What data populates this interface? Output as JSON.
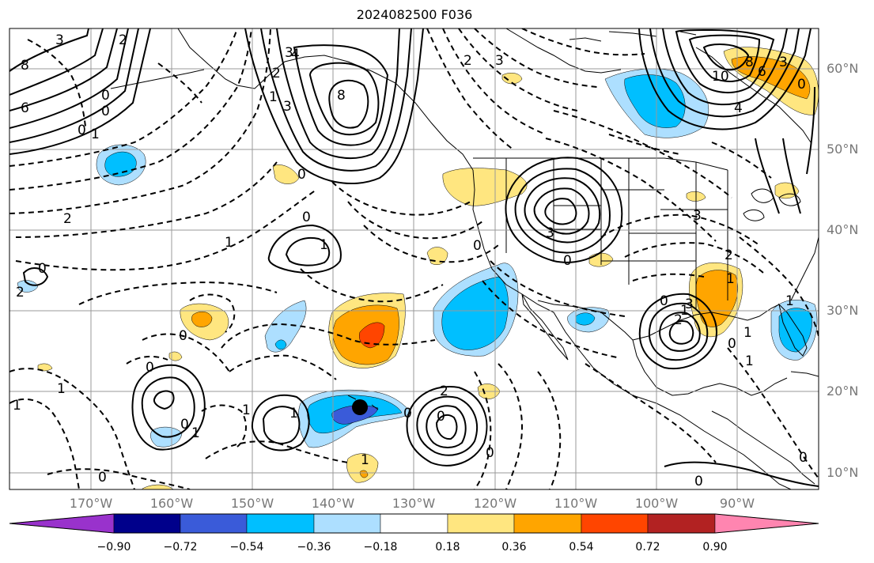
{
  "title": "2024082500 F036",
  "lat_labels": [
    "60°N",
    "50°N",
    "40°N",
    "30°N",
    "20°N",
    "10°N"
  ],
  "lon_labels": [
    "170°W",
    "160°W",
    "150°W",
    "140°W",
    "130°W",
    "120°W",
    "110°W",
    "100°W",
    "90°W"
  ],
  "colorbar": {
    "ticks": [
      "−0.90",
      "−0.72",
      "−0.54",
      "−0.36",
      "−0.18",
      "0.18",
      "0.36",
      "0.54",
      "0.72",
      "0.90"
    ],
    "colors": [
      "#9932CC",
      "#00008B",
      "#3A5BD9",
      "#00BFFF",
      "#ADDFFF",
      "#FFFFFF",
      "#FFE680",
      "#FFA500",
      "#FF4500",
      "#B22222",
      "#FF85B0"
    ],
    "extend": "both"
  },
  "contour_labels": [
    "8",
    "6",
    "0",
    "3",
    "2",
    "1",
    "0",
    "0",
    "2",
    "3",
    "8",
    "0",
    "1",
    "3",
    "1",
    "2",
    "1",
    "0",
    "4",
    "3",
    "0",
    "3",
    "3",
    "10",
    "8",
    "6",
    "0",
    "4",
    "2",
    "3",
    "2",
    "1",
    "3",
    "0",
    "2",
    "1",
    "0",
    "1",
    "1",
    "1",
    "2",
    "0",
    "0",
    "1",
    "0",
    "0",
    "1",
    "1",
    "1",
    "0",
    "0",
    "2",
    "0",
    "0",
    "0",
    "1",
    "0",
    "0",
    "1"
  ],
  "marker": "black-dot"
}
